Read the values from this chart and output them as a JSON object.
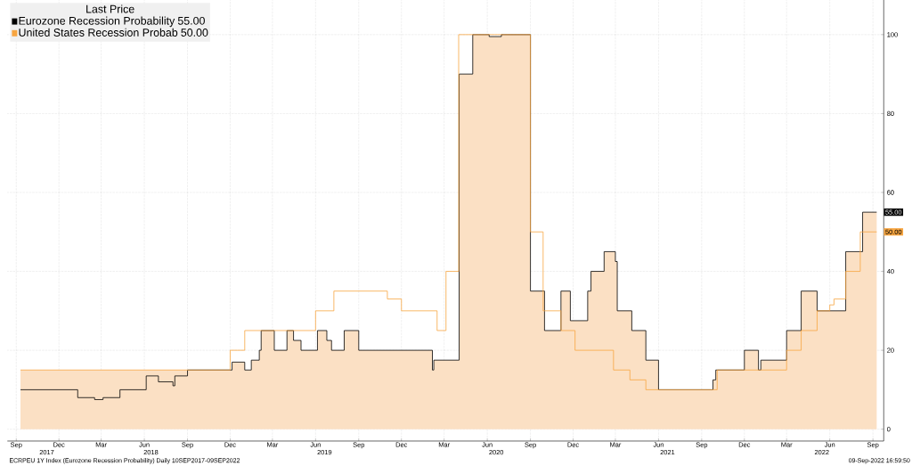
{
  "chart_data": {
    "type": "step",
    "legend_title": "Last Price",
    "series": [
      {
        "type": "area",
        "color": "#fbe0c4",
        "x": [
          "2017-09-10",
          "2018-09-01",
          "2018-12-05",
          "2019-01-01",
          "2019-01-15",
          "2019-02-01",
          "2019-02-05",
          "2019-03-05",
          "2019-04-01",
          "2019-04-15",
          "2019-05-01",
          "2019-06-05",
          "2019-06-25",
          "2019-07-05",
          "2019-08-01",
          "2019-09-01",
          "2020-02-05",
          "2020-02-08",
          "2020-04-02",
          "2020-05-01",
          "2020-06-05",
          "2020-07-01",
          "2020-09-01",
          "2020-10-01",
          "2020-11-05",
          "2020-11-25",
          "2021-01-01",
          "2021-01-08",
          "2021-02-05",
          "2021-03-01",
          "2021-03-05",
          "2021-04-05",
          "2021-05-05",
          "2021-06-01",
          "2021-09-25",
          "2021-10-01",
          "2021-12-01",
          "2021-12-31",
          "2022-01-05",
          "2022-03-01",
          "2022-04-01",
          "2022-05-05",
          "2022-07-05",
          "2022-08-10",
          "2022-09-09"
        ],
        "values": [
          15,
          15,
          17,
          15,
          17.5,
          20,
          25,
          20,
          25,
          22.5,
          20,
          25,
          22.5,
          20,
          25,
          20,
          15,
          17.5,
          90,
          100,
          99.5,
          100,
          35,
          25,
          35,
          27.5,
          35,
          40,
          45,
          42.5,
          30,
          25,
          17.5,
          10,
          12.5,
          15,
          20,
          15,
          17.5,
          25,
          35,
          30,
          45,
          55,
          55
        ]
      },
      {
        "name": "Eurozone Recession Probability",
        "color": "#000000",
        "x": [
          "2017-09-10",
          "2018-01-10",
          "2018-02-15",
          "2018-03-05",
          "2018-04-10",
          "2018-06-05",
          "2018-07-01",
          "2018-08-01",
          "2018-08-05",
          "2018-09-01",
          "2018-12-05",
          "2019-01-01",
          "2019-01-15",
          "2019-02-01",
          "2019-02-05",
          "2019-03-05",
          "2019-04-01",
          "2019-04-15",
          "2019-05-01",
          "2019-06-05",
          "2019-06-25",
          "2019-07-05",
          "2019-08-01",
          "2019-09-01",
          "2020-02-05",
          "2020-02-08",
          "2020-04-02",
          "2020-05-01",
          "2020-06-05",
          "2020-07-01",
          "2020-09-01",
          "2020-10-01",
          "2020-11-05",
          "2020-11-25",
          "2021-01-01",
          "2021-01-08",
          "2021-02-05",
          "2021-03-01",
          "2021-03-05",
          "2021-04-05",
          "2021-05-05",
          "2021-06-01",
          "2021-09-25",
          "2021-10-01",
          "2021-12-01",
          "2021-12-31",
          "2022-01-05",
          "2022-03-01",
          "2022-04-01",
          "2022-05-05",
          "2022-07-05",
          "2022-08-10",
          "2022-09-09"
        ],
        "values": [
          10,
          8,
          7.5,
          8,
          10,
          13.5,
          12,
          11,
          13.5,
          15,
          17,
          15,
          17.5,
          20,
          25,
          20,
          25,
          22.5,
          20,
          25,
          22.5,
          20,
          25,
          20,
          15,
          17.5,
          90,
          100,
          99.5,
          100,
          35,
          25,
          35,
          27.5,
          35,
          40,
          45,
          42.5,
          30,
          25,
          17.5,
          10,
          12.5,
          15,
          20,
          15,
          17.5,
          25,
          35,
          30,
          45,
          55,
          55
        ],
        "value_labels": [
          null,
          null,
          null,
          null,
          null,
          null,
          null,
          null,
          null,
          null,
          null,
          null,
          null,
          null,
          null,
          null,
          null,
          null,
          null,
          null,
          null,
          null,
          null,
          null,
          null,
          null,
          null,
          null,
          null,
          null,
          null,
          null,
          null,
          null,
          null,
          null,
          null,
          null,
          null,
          null,
          null,
          null,
          null,
          null,
          null,
          null,
          null,
          null,
          null,
          null,
          null,
          null,
          "55.00"
        ]
      },
      {
        "name": "United States Recession Probab",
        "color": "#f7a540",
        "x": [
          "2017-09-10",
          "2018-12-01",
          "2019-01-01",
          "2019-06-01",
          "2019-07-10",
          "2019-11-01",
          "2019-12-01",
          "2020-02-15",
          "2020-03-05",
          "2020-04-01",
          "2020-09-01",
          "2020-09-28",
          "2020-11-05",
          "2020-12-05",
          "2021-02-25",
          "2021-04-01",
          "2021-05-05",
          "2021-10-04",
          "2022-03-01",
          "2022-04-01",
          "2022-05-05",
          "2022-06-01",
          "2022-06-10",
          "2022-07-05",
          "2022-08-05",
          "2022-09-09"
        ],
        "values": [
          15,
          20,
          25,
          30,
          35,
          33,
          30,
          25,
          40,
          100,
          50,
          30,
          25,
          20,
          15,
          12.5,
          10,
          15,
          20,
          25,
          30,
          31.5,
          33,
          40,
          50,
          50
        ],
        "value_labels": [
          null,
          null,
          null,
          null,
          null,
          null,
          null,
          null,
          null,
          null,
          null,
          null,
          null,
          null,
          null,
          null,
          null,
          null,
          null,
          null,
          null,
          null,
          null,
          null,
          null,
          "50.00"
        ]
      }
    ],
    "xlim": [
      "2017-08-13",
      "2022-09-24"
    ],
    "xticks": [
      {
        "value": "2017-09-01",
        "label": "Sep"
      },
      {
        "value": "2017-12-01",
        "label": "Dec"
      },
      {
        "value": "2018-03-01",
        "label": "Mar"
      },
      {
        "value": "2018-06-01",
        "label": "Jun"
      },
      {
        "value": "2018-09-01",
        "label": "Sep"
      },
      {
        "value": "2018-12-01",
        "label": "Dec"
      },
      {
        "value": "2019-03-01",
        "label": "Mar"
      },
      {
        "value": "2019-06-01",
        "label": "Jun"
      },
      {
        "value": "2019-09-01",
        "label": "Sep"
      },
      {
        "value": "2019-12-01",
        "label": "Dec"
      },
      {
        "value": "2020-03-01",
        "label": "Mar"
      },
      {
        "value": "2020-06-01",
        "label": "Jun"
      },
      {
        "value": "2020-09-01",
        "label": "Sep"
      },
      {
        "value": "2020-12-01",
        "label": "Dec"
      },
      {
        "value": "2021-03-01",
        "label": "Mar"
      },
      {
        "value": "2021-06-01",
        "label": "Jun"
      },
      {
        "value": "2021-09-01",
        "label": "Sep"
      },
      {
        "value": "2021-12-01",
        "label": "Dec"
      },
      {
        "value": "2022-03-01",
        "label": "Mar"
      },
      {
        "value": "2022-06-01",
        "label": "Jun"
      },
      {
        "value": "2022-09-01",
        "label": "Sep"
      }
    ],
    "x2lim": [
      "2017-08-13",
      "2022-09-24"
    ],
    "x2ticks": [
      {
        "value": "2017-11-05",
        "label": "2017"
      },
      {
        "value": "2018-06-15",
        "label": "2018"
      },
      {
        "value": "2019-06-20",
        "label": "2019"
      },
      {
        "value": "2020-06-20",
        "label": "2020"
      },
      {
        "value": "2021-06-20",
        "label": "2021"
      },
      {
        "value": "2022-05-15",
        "label": "2022"
      }
    ],
    "ylim": [
      -3,
      109
    ],
    "yticks": [
      0,
      20,
      40,
      60,
      80,
      100
    ],
    "grid": true,
    "legend": "top left",
    "line_style": "solid",
    "marker": "none",
    "annotations": [
      "ECRPEU 1Y Index (Eurozone Recession Probability)  Daily 10SEP2017-09SEP2022",
      "09-Sep-2022 16:59:50"
    ]
  }
}
